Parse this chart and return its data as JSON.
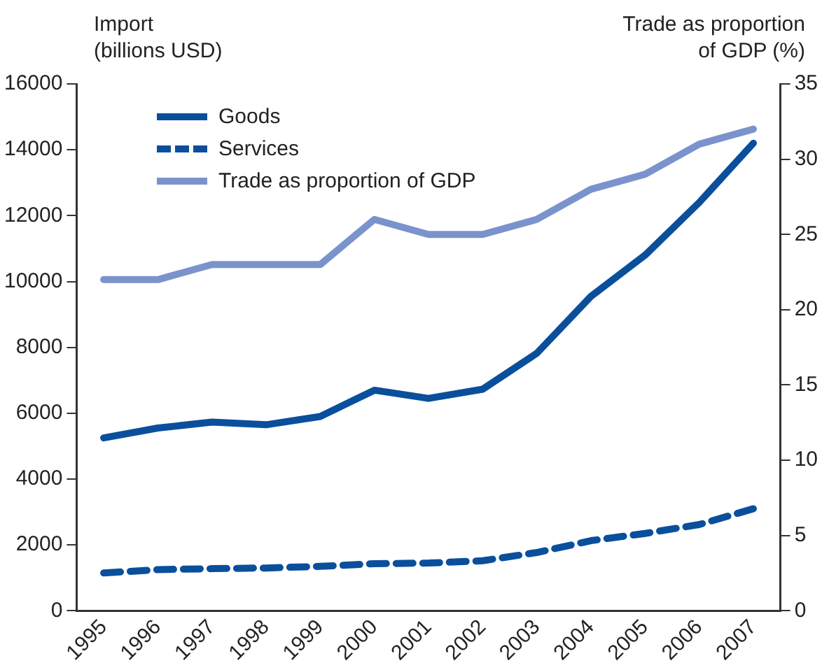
{
  "chart_data": {
    "type": "line",
    "ylabel": "Import\n(billions USD)",
    "y2label": "Trade as proportion\nof GDP (%)",
    "categories": [
      "1995",
      "1996",
      "1997",
      "1998",
      "1999",
      "2000",
      "2001",
      "2002",
      "2003",
      "2004",
      "2005",
      "2006",
      "2007"
    ],
    "series": [
      {
        "name": "Goods",
        "color": "#0a4f9c",
        "line_style": "solid",
        "values": [
          5250,
          5550,
          5730,
          5650,
          5900,
          6700,
          6450,
          6730,
          7820,
          9550,
          10800,
          12400,
          14200
        ]
      },
      {
        "name": "Services",
        "color": "#0a4f9c",
        "line_style": "dashed",
        "values": [
          1150,
          1250,
          1280,
          1300,
          1350,
          1430,
          1450,
          1520,
          1770,
          2130,
          2350,
          2620,
          3100
        ]
      },
      {
        "name": "Trade as proportion of GDP",
        "color": "#7b93cc",
        "line_style": "solid",
        "axis": "y2",
        "values": [
          22,
          22,
          23,
          23,
          23,
          26,
          25,
          25,
          26,
          28,
          29,
          31,
          32
        ]
      }
    ],
    "ylim": [
      0,
      16000
    ],
    "yticks": [
      0,
      2000,
      4000,
      6000,
      8000,
      10000,
      12000,
      14000,
      16000
    ],
    "y2lim": [
      0,
      35
    ],
    "y2ticks": [
      0,
      5,
      10,
      15,
      20,
      25,
      30,
      35
    ],
    "grid": false,
    "legend": "top left",
    "marker": "none"
  }
}
